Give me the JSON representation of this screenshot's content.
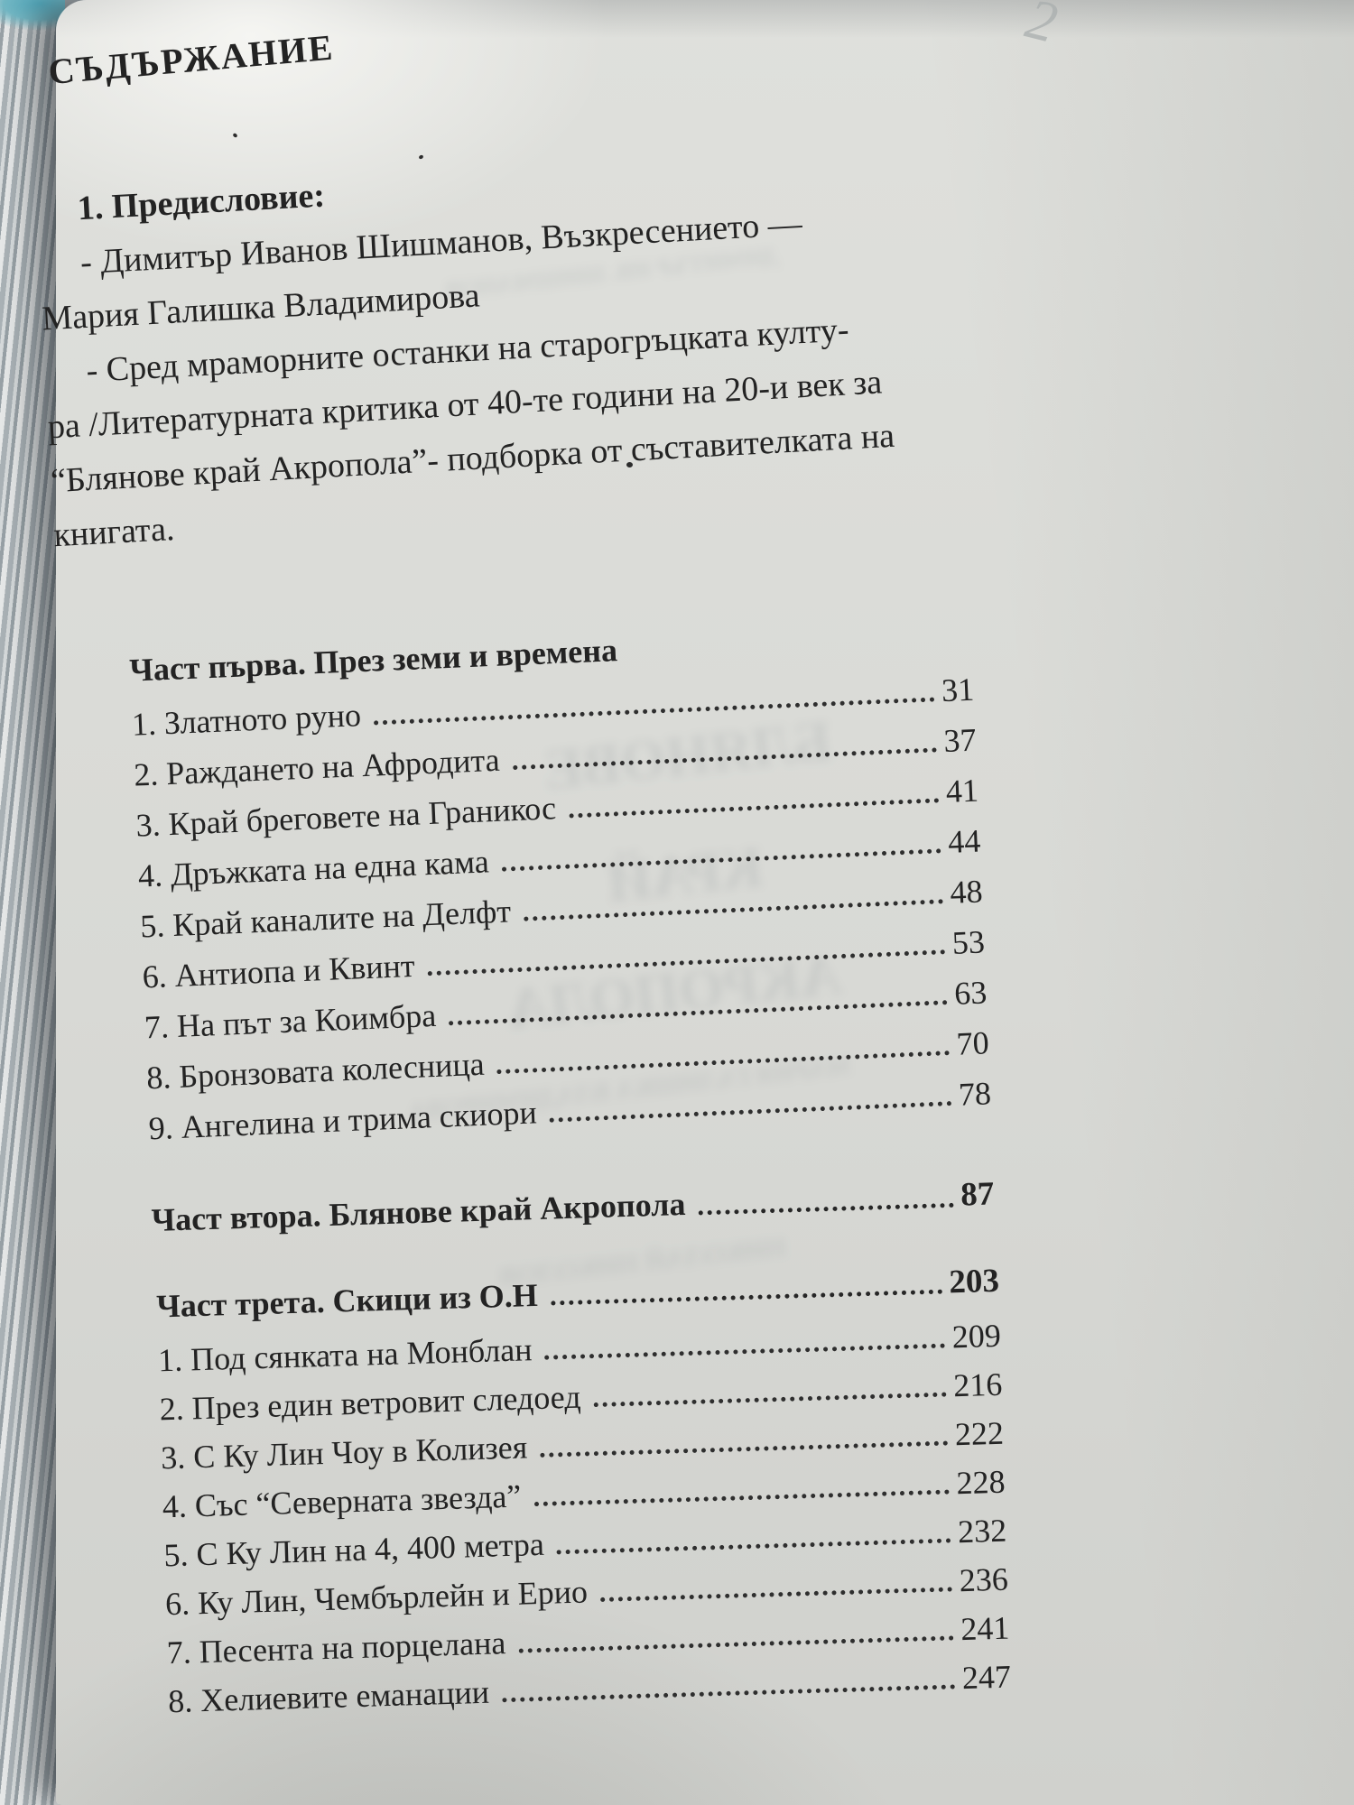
{
  "photo": {
    "handwritten_mark": "2",
    "title": "СЪДЪРЖАНИЕ",
    "preface": {
      "heading": "1. Предисловие:",
      "line1": "- Димитър Иванов Шишманов,  Възкресението —",
      "line2": "Мария Галишка Владимирова",
      "line3": "- Сред мраморните останки на старогръцката култу-",
      "line4": "ра /Литературната критика от 40-те години на 20-и век за",
      "line5": "“Блянове край Акропола”- подборка от съставителката на",
      "line6": "книгата."
    },
    "part1": {
      "heading": "Част първа. През земи и времена",
      "items": [
        {
          "label": "1. Златното руно",
          "page": "31"
        },
        {
          "label": "2. Раждането на Афродита",
          "page": "37"
        },
        {
          "label": "3. Край бреговете на Граникос",
          "page": "41"
        },
        {
          "label": "4. Дръжката на една кама",
          "page": "44"
        },
        {
          "label": "5. Край каналите на Делфт",
          "page": "48"
        },
        {
          "label": "6. Антиопа и Квинт",
          "page": "53"
        },
        {
          "label": "7. На път за Коимбра",
          "page": "63"
        },
        {
          "label": "8. Бронзовата колесница",
          "page": "70"
        },
        {
          "label": "9. Ангелина и трима скиори",
          "page": "78"
        }
      ]
    },
    "part2": {
      "heading": "Част втора. Блянове край Акропола",
      "page": "87"
    },
    "part3": {
      "heading": "Част трета. Скици из О.Н",
      "page": "203",
      "items": [
        {
          "label": "1. Под сянката на Монблан",
          "page": "209"
        },
        {
          "label": "2. През един ветровит следоед",
          "page": "216"
        },
        {
          "label": "3. С Ку Лин Чоу в Колизея",
          "page": "222"
        },
        {
          "label": "4. Със “Северната звезда”",
          "page": "228"
        },
        {
          "label": "5. С Ку Лин на 4, 400 метра",
          "page": "232"
        },
        {
          "label": "6. Ку Лин, Чембърлейн и Ерио",
          "page": "236"
        },
        {
          "label": "7. Песента на порцелана",
          "page": "241"
        },
        {
          "label": "8. Хелиевите еманации",
          "page": "247"
        }
      ]
    },
    "bleedthrough": {
      "l1": "БЛЯНОВЕ",
      "l2": "КРАЙ",
      "l3": "АКРОПОЛА",
      "l4": "МАРИЯ ГАЛИШКА ВЛАДИМИРОВА",
      "l5": "НИКОЛАЙ НИКОЛОВ",
      "l6": "ДИМИТЪР ИВ. ШИШМАНОВ"
    }
  }
}
